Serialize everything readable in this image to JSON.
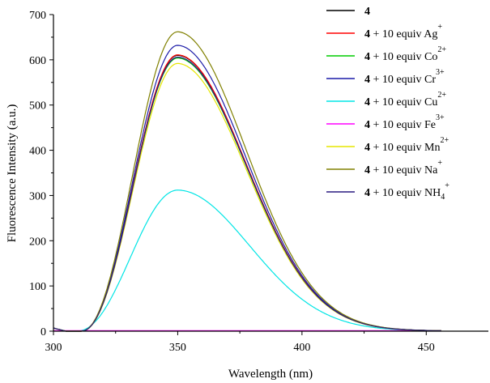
{
  "chart_data": {
    "type": "line",
    "xlabel": "Wavelength (nm)",
    "ylabel": "Fluorescence Intensity (a.u.)",
    "xlim": [
      300,
      475
    ],
    "ylim": [
      0,
      700
    ],
    "xticks": [
      300,
      350,
      400,
      450
    ],
    "yticks": [
      0,
      100,
      200,
      300,
      400,
      500,
      600,
      700
    ],
    "legend_position": "top-right",
    "series": [
      {
        "name": "4",
        "label_main": "4",
        "label_rest": "",
        "label_sup": "",
        "label_sub": "",
        "label_tail": "",
        "color": "#000000",
        "kind": "peak",
        "peak": 610,
        "baseline": 0
      },
      {
        "name": "4 + 10 equiv Ag+",
        "label_main": "4",
        "label_rest": " + 10 equiv Ag",
        "label_sup": "+",
        "label_sub": "",
        "label_tail": "",
        "color": "#ff0000",
        "kind": "peak",
        "peak": 611,
        "baseline": 0
      },
      {
        "name": "4 + 10 equiv Co2+",
        "label_main": "4",
        "label_rest": " + 10 equiv Co",
        "label_sup": "2+",
        "label_sub": "",
        "label_tail": "",
        "color": "#00cc00",
        "kind": "peak",
        "peak": 604,
        "baseline": 0
      },
      {
        "name": "4 + 10 equiv Cr3+",
        "label_main": "4",
        "label_rest": " + 10 equiv Cr",
        "label_sup": "3+",
        "label_sub": "",
        "label_tail": "",
        "color": "#1c1ca8",
        "kind": "peak",
        "peak": 632,
        "baseline": 0
      },
      {
        "name": "4 + 10 equiv Cu2+",
        "label_main": "4",
        "label_rest": " + 10 equiv Cu",
        "label_sup": "2+",
        "label_sub": "",
        "label_tail": "",
        "color": "#00e5e5",
        "kind": "peak",
        "peak": 312,
        "baseline": 0
      },
      {
        "name": "4 + 10 equiv Fe3+",
        "label_main": "4",
        "label_rest": " + 10 equiv Fe",
        "label_sup": "3+",
        "label_sub": "",
        "label_tail": "",
        "color": "#ff00ff",
        "kind": "flat",
        "peak": 1,
        "baseline": 1
      },
      {
        "name": "4 + 10 equiv Mn2+",
        "label_main": "4",
        "label_rest": " + 10 equiv Mn",
        "label_sup": "2+",
        "label_sub": "",
        "label_tail": "",
        "color": "#e6e600",
        "kind": "peak",
        "peak": 592,
        "baseline": 0
      },
      {
        "name": "4 + 10 equiv Na+",
        "label_main": "4",
        "label_rest": " + 10 equiv Na",
        "label_sup": "+",
        "label_sub": "",
        "label_tail": "",
        "color": "#808000",
        "kind": "peak",
        "peak": 662,
        "baseline": 0
      },
      {
        "name": "4 + 10 equiv NH4+",
        "label_main": "4",
        "label_rest": " + 10 equiv NH",
        "label_sup": "+",
        "label_sub": "4",
        "label_tail": "",
        "color": "#2a1a80",
        "kind": "peak",
        "peak": 606,
        "baseline": 0
      }
    ]
  }
}
